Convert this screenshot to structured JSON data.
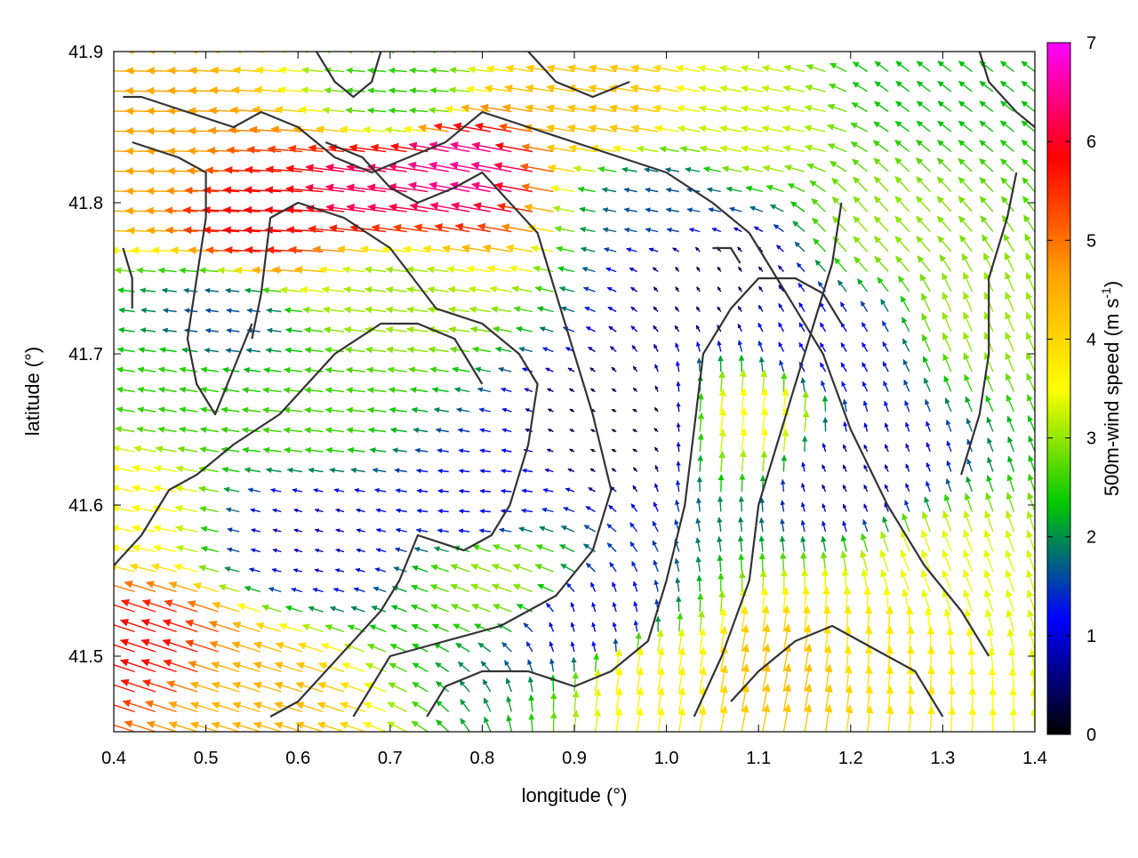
{
  "chart_data": {
    "type": "vector_field",
    "xlabel": "longitude (°)",
    "ylabel": "latitude (°)",
    "xlim": [
      0.4,
      1.4
    ],
    "ylim": [
      41.45,
      41.9
    ],
    "x_ticks": [
      "0.4",
      "0.5",
      "0.6",
      "0.7",
      "0.8",
      "0.9",
      "1.0",
      "1.1",
      "1.2",
      "1.3",
      "1.4"
    ],
    "y_ticks": [
      "41.5",
      "41.6",
      "41.7",
      "41.8",
      "41.9"
    ],
    "x_tick_values": [
      0.4,
      0.5,
      0.6,
      0.7,
      0.8,
      0.9,
      1.0,
      1.1,
      1.2,
      1.3,
      1.4
    ],
    "y_tick_values": [
      41.5,
      41.6,
      41.7,
      41.8,
      41.9
    ],
    "colorbar": {
      "title_main": "500m-wind speed (m s",
      "title_sup": "-1",
      "title_end": ")",
      "range": [
        0,
        7
      ],
      "ticks": [
        "0",
        "1",
        "2",
        "3",
        "4",
        "5",
        "6",
        "7"
      ],
      "tick_values": [
        0,
        1,
        2,
        3,
        4,
        5,
        6,
        7
      ],
      "colors": [
        "#000000",
        "#0000ff",
        "#00c800",
        "#ffff00",
        "#ffa000",
        "#ff0000",
        "#ff00ff"
      ]
    },
    "contour_color": "#333333",
    "grid": false,
    "vector_grid": {
      "nx": 44,
      "ny": 34
    },
    "flow_regions": [
      {
        "lon": 0.58,
        "lat": 41.79,
        "u": -5.8,
        "v": 0.3
      },
      {
        "lon": 0.7,
        "lat": 41.81,
        "u": -6.2,
        "v": 0.8
      },
      {
        "lon": 0.79,
        "lat": 41.82,
        "u": -6.4,
        "v": 1.2
      },
      {
        "lon": 0.45,
        "lat": 41.83,
        "u": -4.6,
        "v": 0.1
      },
      {
        "lon": 0.45,
        "lat": 41.5,
        "u": -5.5,
        "v": 1.8
      },
      {
        "lon": 0.55,
        "lat": 41.47,
        "u": -4.2,
        "v": 1.3
      },
      {
        "lon": 0.72,
        "lat": 41.87,
        "u": -2.5,
        "v": 0.2
      },
      {
        "lon": 0.95,
        "lat": 41.86,
        "u": -4.2,
        "v": 0.7
      },
      {
        "lon": 1.1,
        "lat": 41.85,
        "u": -3.2,
        "v": 0.6
      },
      {
        "lon": 0.95,
        "lat": 41.65,
        "u": -0.2,
        "v": 0.1
      },
      {
        "lon": 1.05,
        "lat": 41.75,
        "u": -0.2,
        "v": 0.3
      },
      {
        "lon": 0.8,
        "lat": 41.6,
        "u": -1.2,
        "v": 0.1
      },
      {
        "lon": 0.62,
        "lat": 41.58,
        "u": -0.8,
        "v": 0.2
      },
      {
        "lon": 0.62,
        "lat": 41.66,
        "u": -2.6,
        "v": 0.3
      },
      {
        "lon": 0.72,
        "lat": 41.74,
        "u": -3.0,
        "v": 0.4
      },
      {
        "lon": 0.48,
        "lat": 41.68,
        "u": -2.5,
        "v": 0.4
      },
      {
        "lon": 0.42,
        "lat": 41.6,
        "u": -3.5,
        "v": 0.7
      },
      {
        "lon": 0.83,
        "lat": 41.55,
        "u": -2.8,
        "v": 1.0
      },
      {
        "lon": 0.92,
        "lat": 41.52,
        "u": -0.3,
        "v": 1.0
      },
      {
        "lon": 0.98,
        "lat": 41.48,
        "u": 0.6,
        "v": 3.6
      },
      {
        "lon": 1.12,
        "lat": 41.48,
        "u": 0.8,
        "v": 4.2
      },
      {
        "lon": 1.22,
        "lat": 41.5,
        "u": 0.3,
        "v": 3.8
      },
      {
        "lon": 1.1,
        "lat": 41.65,
        "u": 0.4,
        "v": 3.5
      },
      {
        "lon": 1.3,
        "lat": 41.55,
        "u": -1.2,
        "v": 3.2
      },
      {
        "lon": 1.35,
        "lat": 41.72,
        "u": -1.2,
        "v": 2.8
      },
      {
        "lon": 1.25,
        "lat": 41.78,
        "u": -2.0,
        "v": 2.2
      },
      {
        "lon": 1.2,
        "lat": 41.62,
        "u": -0.3,
        "v": 0.6
      },
      {
        "lon": 1.18,
        "lat": 41.7,
        "u": -0.6,
        "v": 1.0
      },
      {
        "lon": 1.3,
        "lat": 41.88,
        "u": -1.8,
        "v": 1.4
      },
      {
        "lon": 1.0,
        "lat": 41.8,
        "u": -1.6,
        "v": 0.3
      },
      {
        "lon": 0.52,
        "lat": 41.72,
        "u": -1.6,
        "v": 0.2
      }
    ],
    "contours": [
      [
        [
          0.41,
          41.87
        ],
        [
          0.43,
          41.87
        ],
        [
          0.48,
          41.86
        ],
        [
          0.53,
          41.85
        ],
        [
          0.56,
          41.86
        ],
        [
          0.6,
          41.85
        ],
        [
          0.64,
          41.83
        ],
        [
          0.68,
          41.82
        ],
        [
          0.72,
          41.83
        ],
        [
          0.76,
          41.84
        ],
        [
          0.8,
          41.86
        ],
        [
          0.85,
          41.85
        ],
        [
          0.9,
          41.84
        ],
        [
          0.95,
          41.83
        ],
        [
          1.0,
          41.82
        ],
        [
          1.05,
          41.8
        ],
        [
          1.09,
          41.78
        ],
        [
          1.13,
          41.74
        ],
        [
          1.17,
          41.7
        ],
        [
          1.2,
          41.65
        ],
        [
          1.24,
          41.6
        ],
        [
          1.28,
          41.56
        ],
        [
          1.32,
          41.53
        ],
        [
          1.35,
          41.5
        ]
      ],
      [
        [
          0.42,
          41.84
        ],
        [
          0.47,
          41.83
        ],
        [
          0.5,
          41.82
        ],
        [
          0.5,
          41.79
        ],
        [
          0.49,
          41.75
        ],
        [
          0.48,
          41.71
        ],
        [
          0.49,
          41.68
        ],
        [
          0.51,
          41.66
        ],
        [
          0.53,
          41.69
        ],
        [
          0.55,
          41.72
        ]
      ],
      [
        [
          0.55,
          41.71
        ],
        [
          0.56,
          41.74
        ],
        [
          0.57,
          41.79
        ],
        [
          0.6,
          41.8
        ],
        [
          0.65,
          41.79
        ],
        [
          0.7,
          41.77
        ],
        [
          0.75,
          41.73
        ],
        [
          0.8,
          41.72
        ],
        [
          0.84,
          41.7
        ],
        [
          0.86,
          41.68
        ],
        [
          0.85,
          41.64
        ],
        [
          0.83,
          41.6
        ],
        [
          0.81,
          41.58
        ],
        [
          0.78,
          41.57
        ],
        [
          0.73,
          41.58
        ],
        [
          0.71,
          41.55
        ],
        [
          0.69,
          41.53
        ],
        [
          0.66,
          41.51
        ],
        [
          0.63,
          41.49
        ],
        [
          0.6,
          41.47
        ],
        [
          0.57,
          41.46
        ]
      ],
      [
        [
          0.4,
          41.56
        ],
        [
          0.43,
          41.58
        ],
        [
          0.46,
          41.61
        ],
        [
          0.49,
          41.62
        ],
        [
          0.53,
          41.64
        ],
        [
          0.58,
          41.66
        ],
        [
          0.64,
          41.7
        ],
        [
          0.69,
          41.72
        ],
        [
          0.73,
          41.72
        ],
        [
          0.77,
          41.71
        ],
        [
          0.8,
          41.68
        ]
      ],
      [
        [
          0.74,
          41.46
        ],
        [
          0.76,
          41.48
        ],
        [
          0.8,
          41.49
        ],
        [
          0.85,
          41.49
        ],
        [
          0.9,
          41.48
        ],
        [
          0.94,
          41.49
        ],
        [
          0.98,
          41.51
        ],
        [
          1.0,
          41.55
        ],
        [
          1.02,
          41.6
        ],
        [
          1.03,
          41.65
        ],
        [
          1.04,
          41.7
        ],
        [
          1.07,
          41.73
        ],
        [
          1.1,
          41.75
        ],
        [
          1.14,
          41.75
        ],
        [
          1.17,
          41.74
        ],
        [
          1.19,
          41.72
        ]
      ],
      [
        [
          0.66,
          41.46
        ],
        [
          0.7,
          41.5
        ],
        [
          0.76,
          41.51
        ],
        [
          0.82,
          41.52
        ],
        [
          0.88,
          41.54
        ],
        [
          0.92,
          41.57
        ],
        [
          0.94,
          41.61
        ],
        [
          0.92,
          41.66
        ],
        [
          0.9,
          41.7
        ],
        [
          0.88,
          41.74
        ],
        [
          0.86,
          41.78
        ],
        [
          0.83,
          41.8
        ],
        [
          0.8,
          41.82
        ],
        [
          0.77,
          41.81
        ],
        [
          0.73,
          41.8
        ],
        [
          0.7,
          41.81
        ],
        [
          0.67,
          41.83
        ],
        [
          0.63,
          41.84
        ]
      ],
      [
        [
          1.03,
          41.46
        ],
        [
          1.06,
          41.5
        ],
        [
          1.09,
          41.55
        ],
        [
          1.1,
          41.6
        ],
        [
          1.12,
          41.64
        ],
        [
          1.14,
          41.68
        ],
        [
          1.16,
          41.72
        ],
        [
          1.18,
          41.76
        ],
        [
          1.19,
          41.8
        ]
      ],
      [
        [
          1.3,
          41.46
        ],
        [
          1.27,
          41.49
        ],
        [
          1.24,
          41.5
        ],
        [
          1.21,
          41.51
        ],
        [
          1.18,
          41.52
        ],
        [
          1.14,
          41.51
        ],
        [
          1.1,
          41.49
        ],
        [
          1.07,
          41.47
        ]
      ],
      [
        [
          1.32,
          41.62
        ],
        [
          1.34,
          41.66
        ],
        [
          1.35,
          41.7
        ],
        [
          1.35,
          41.75
        ],
        [
          1.37,
          41.79
        ],
        [
          1.38,
          41.82
        ]
      ],
      [
        [
          0.62,
          41.9
        ],
        [
          0.64,
          41.88
        ],
        [
          0.66,
          41.87
        ],
        [
          0.68,
          41.88
        ],
        [
          0.69,
          41.9
        ]
      ],
      [
        [
          0.85,
          41.9
        ],
        [
          0.88,
          41.88
        ],
        [
          0.92,
          41.87
        ],
        [
          0.96,
          41.88
        ]
      ],
      [
        [
          1.34,
          41.9
        ],
        [
          1.35,
          41.88
        ],
        [
          1.38,
          41.86
        ],
        [
          1.4,
          41.85
        ]
      ],
      [
        [
          0.41,
          41.77
        ],
        [
          0.42,
          41.75
        ],
        [
          0.42,
          41.73
        ]
      ],
      [
        [
          1.05,
          41.77
        ],
        [
          1.07,
          41.77
        ],
        [
          1.08,
          41.76
        ]
      ]
    ]
  }
}
